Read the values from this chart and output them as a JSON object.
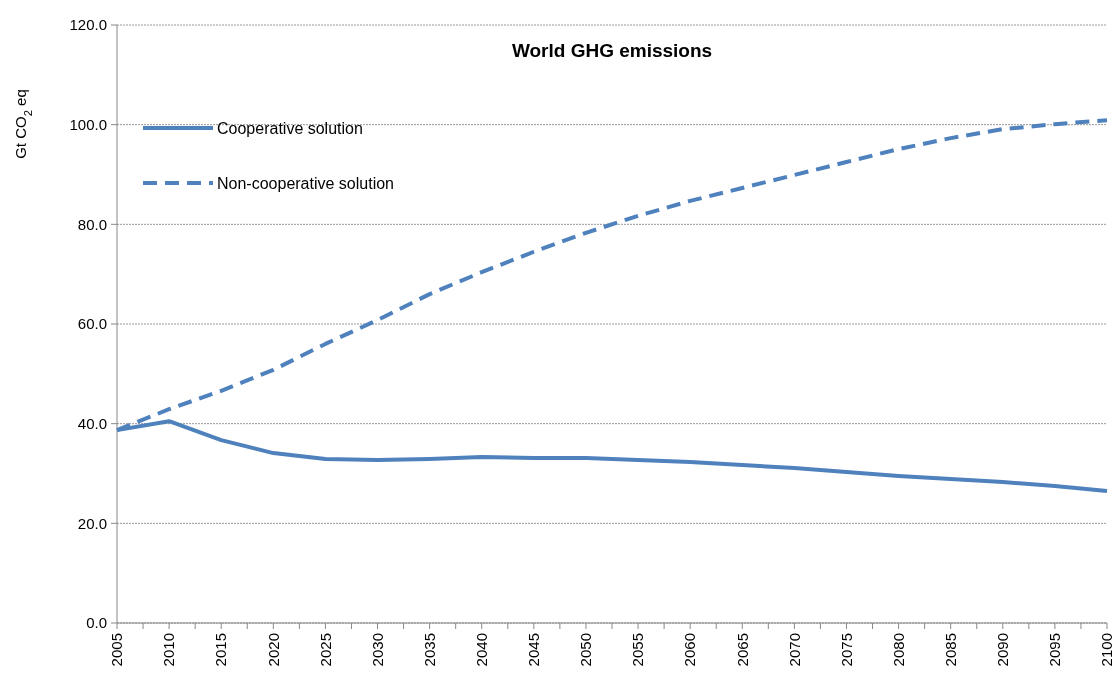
{
  "chart_data": {
    "type": "line",
    "title": "World GHG emissions",
    "ylabel": "Gt CO$_{2}$ eq",
    "categories": [
      "2005",
      "2010",
      "2015",
      "2020",
      "2025",
      "2030",
      "2035",
      "2040",
      "2045",
      "2050",
      "2055",
      "2060",
      "2065",
      "2070",
      "2075",
      "2080",
      "2085",
      "2090",
      "2095",
      "2100"
    ],
    "series": [
      {
        "name": "Cooperative solution",
        "color": "#4f81bd",
        "line_style": "solid",
        "values": [
          38.7,
          40.5,
          36.7,
          34.1,
          32.9,
          32.7,
          32.9,
          33.3,
          33.1,
          33.1,
          32.7,
          32.3,
          31.7,
          31.1,
          30.3,
          29.5,
          28.9,
          28.3,
          27.5,
          26.5
        ]
      },
      {
        "name": "Non-cooperative solution",
        "color": "#4f81bd",
        "line_style": "dashed",
        "values": [
          38.7,
          42.9,
          46.6,
          50.8,
          56.0,
          60.8,
          66.0,
          70.4,
          74.5,
          78.3,
          81.7,
          84.7,
          87.3,
          89.9,
          92.5,
          95.1,
          97.3,
          99.1,
          100.1,
          100.9
        ]
      }
    ],
    "ylim": [
      0,
      120
    ],
    "yticks": [
      {
        "value": 0,
        "label": "0.0"
      },
      {
        "value": 20,
        "label": "20.0"
      },
      {
        "value": 40,
        "label": "40.0"
      },
      {
        "value": 60,
        "label": "60.0"
      },
      {
        "value": 80,
        "label": "80.0"
      },
      {
        "value": 100,
        "label": "100.0"
      },
      {
        "value": 120,
        "label": "120.0"
      }
    ],
    "grid": "y",
    "legend": "top left",
    "marker": "none"
  }
}
